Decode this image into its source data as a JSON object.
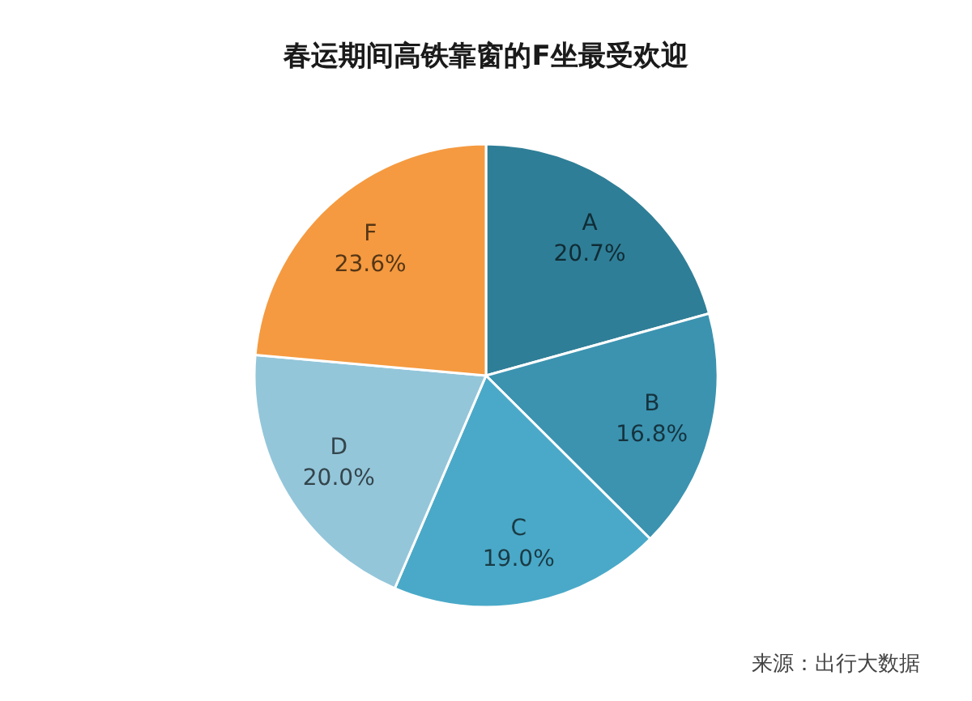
{
  "chart_data": {
    "type": "pie",
    "title": "春运期间高铁靠窗的F坐最受欢迎",
    "categories": [
      "A",
      "B",
      "C",
      "D",
      "F"
    ],
    "values": [
      20.7,
      16.8,
      19.0,
      20.0,
      23.6
    ],
    "value_labels": [
      "20.7%",
      "16.8%",
      "19.0%",
      "20.0%",
      "23.6%"
    ],
    "colors": [
      "#2f7e97",
      "#3b93b0",
      "#4aa9c8",
      "#94c6da",
      "#f59a40"
    ],
    "annotations": [
      "来源：出行大数据"
    ]
  }
}
